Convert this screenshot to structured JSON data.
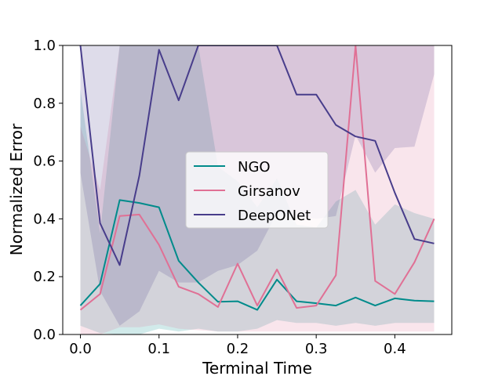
{
  "chart_data": {
    "type": "line",
    "title": "",
    "xlabel": "Terminal Time",
    "ylabel": "Normalized Error",
    "xlim": [
      -0.0225,
      0.4725
    ],
    "ylim": [
      0,
      1
    ],
    "xticks": [
      0.0,
      0.1,
      0.2,
      0.3,
      0.4
    ],
    "xtick_labels": [
      "0.0",
      "0.1",
      "0.2",
      "0.3",
      "0.4"
    ],
    "yticks": [
      0.0,
      0.2,
      0.4,
      0.6,
      0.8,
      1.0
    ],
    "ytick_labels": [
      "0.0",
      "0.2",
      "0.4",
      "0.6",
      "0.8",
      "1.0"
    ],
    "grid": false,
    "legend_position": "center",
    "x": [
      0.0,
      0.025,
      0.05,
      0.075,
      0.1,
      0.125,
      0.15,
      0.175,
      0.2,
      0.225,
      0.25,
      0.275,
      0.3,
      0.325,
      0.35,
      0.375,
      0.4,
      0.425,
      0.45
    ],
    "series": [
      {
        "name": "NGO",
        "color": "#008b8b",
        "values": [
          0.1,
          0.175,
          0.465,
          0.455,
          0.44,
          0.255,
          0.18,
          0.113,
          0.115,
          0.085,
          0.19,
          0.115,
          0.108,
          0.1,
          0.128,
          0.1,
          0.125,
          0.117,
          0.115
        ],
        "band_lower": [
          0.03,
          0.005,
          0.0,
          0.0,
          0.02,
          0.01,
          0.02,
          0.01,
          0.01,
          0.02,
          0.05,
          0.04,
          0.04,
          0.03,
          0.04,
          0.03,
          0.04,
          0.04,
          0.04
        ],
        "band_upper": [
          0.85,
          0.35,
          1.0,
          1.0,
          1.0,
          1.0,
          1.0,
          0.58,
          0.53,
          0.44,
          0.54,
          0.38,
          0.37,
          0.46,
          0.5,
          0.38,
          0.45,
          0.42,
          0.4
        ]
      },
      {
        "name": "Girsanov",
        "color": "#e07095",
        "values": [
          0.085,
          0.14,
          0.41,
          0.415,
          0.31,
          0.165,
          0.14,
          0.095,
          0.245,
          0.1,
          0.225,
          0.092,
          0.1,
          0.205,
          1.0,
          0.185,
          0.14,
          0.25,
          0.4
        ],
        "band_lower": [
          0.0,
          0.0,
          0.025,
          0.025,
          0.035,
          0.02,
          0.015,
          0.01,
          0.01,
          0.01,
          0.01,
          0.01,
          0.01,
          0.01,
          0.01,
          0.01,
          0.01,
          0.01,
          0.01
        ],
        "band_upper": [
          0.72,
          0.5,
          1.0,
          1.0,
          1.0,
          1.0,
          1.0,
          1.0,
          1.0,
          1.0,
          1.0,
          1.0,
          1.0,
          1.0,
          1.0,
          1.0,
          1.0,
          1.0,
          1.0
        ]
      },
      {
        "name": "DeepONet",
        "color": "#483d8b",
        "values": [
          1.0,
          0.385,
          0.24,
          0.55,
          0.985,
          0.81,
          1.0,
          1.0,
          1.0,
          1.0,
          1.0,
          0.83,
          0.83,
          0.725,
          0.685,
          0.67,
          0.49,
          0.33,
          0.315
        ],
        "band_lower": [
          0.56,
          0.15,
          0.03,
          0.08,
          0.22,
          0.18,
          0.18,
          0.22,
          0.24,
          0.29,
          0.42,
          0.41,
          0.4,
          0.41,
          0.69,
          0.56,
          0.645,
          0.65,
          0.9
        ],
        "band_upper": [
          1.0,
          1.0,
          1.0,
          1.0,
          1.0,
          1.0,
          1.0,
          1.0,
          1.0,
          1.0,
          1.0,
          1.0,
          1.0,
          1.0,
          1.0,
          1.0,
          1.0,
          1.0,
          1.0
        ]
      }
    ]
  }
}
